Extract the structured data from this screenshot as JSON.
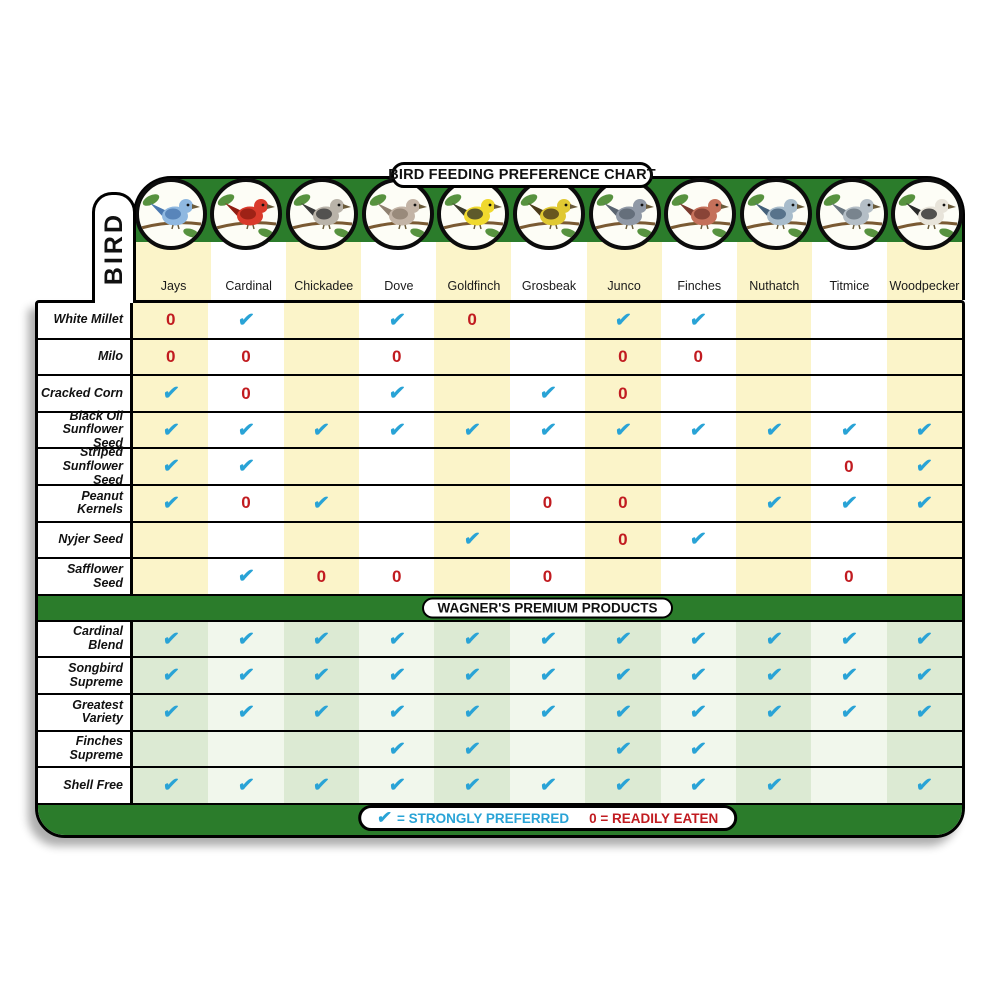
{
  "side_tab": "BIRD",
  "symbols": {
    "check": "✔",
    "zero": "0"
  },
  "legend": {
    "check_symbol": "✔",
    "check_text": "= STRONGLY PREFERRED",
    "zero_text": "0 = READILY EATEN"
  },
  "colors": {
    "green": "#2b7c2b",
    "yellow_stripe": "#fbf4c9",
    "premium_stripe": "#dcead3",
    "check": "#29a3d6",
    "zero": "#c11b20"
  },
  "birds": [
    {
      "name": "Jays",
      "color": "#8fb8e0",
      "accent": "#4a78b0"
    },
    {
      "name": "Cardinal",
      "color": "#d93a2b",
      "accent": "#8f1d12"
    },
    {
      "name": "Chickadee",
      "color": "#b9b3a9",
      "accent": "#3a3a3a"
    },
    {
      "name": "Dove",
      "color": "#c3b4a6",
      "accent": "#8f8070"
    },
    {
      "name": "Goldfinch",
      "color": "#f0d92e",
      "accent": "#3a3a2a"
    },
    {
      "name": "Grosbeak",
      "color": "#e0c832",
      "accent": "#4a3a1a"
    },
    {
      "name": "Junco",
      "color": "#9099a6",
      "accent": "#5a6470"
    },
    {
      "name": "Finches",
      "color": "#c4705a",
      "accent": "#7a3a2e"
    },
    {
      "name": "Nuthatch",
      "color": "#a8bccb",
      "accent": "#44607a"
    },
    {
      "name": "Titmice",
      "color": "#b4bec6",
      "accent": "#6a7680"
    },
    {
      "name": "Woodpecker",
      "color": "#e8e4da",
      "accent": "#2a2a2a"
    }
  ],
  "chart_data": {
    "type": "table",
    "title": "BIRD FEEDING PREFERENCE CHART",
    "columns": [
      "Jays",
      "Cardinal",
      "Chickadee",
      "Dove",
      "Goldfinch",
      "Grosbeak",
      "Junco",
      "Finches",
      "Nuthatch",
      "Titmice",
      "Woodpecker"
    ],
    "legend": {
      "check": "STRONGLY PREFERRED",
      "zero": "READILY EATEN"
    },
    "sections": [
      {
        "title": "",
        "rows": [
          {
            "label": "White Millet",
            "cells": [
              "zero",
              "check",
              "",
              "check",
              "zero",
              "",
              "check",
              "check",
              "",
              "",
              ""
            ]
          },
          {
            "label": "Milo",
            "cells": [
              "zero",
              "zero",
              "",
              "zero",
              "",
              "",
              "zero",
              "zero",
              "",
              "",
              ""
            ]
          },
          {
            "label": "Cracked Corn",
            "cells": [
              "check",
              "zero",
              "",
              "check",
              "",
              "check",
              "zero",
              "",
              "",
              "",
              ""
            ]
          },
          {
            "label": "Black Oil Sunflower Seed",
            "cells": [
              "check",
              "check",
              "check",
              "check",
              "check",
              "check",
              "check",
              "check",
              "check",
              "check",
              "check"
            ]
          },
          {
            "label": "Striped Sunflower Seed",
            "cells": [
              "check",
              "check",
              "",
              "",
              "",
              "",
              "",
              "",
              "",
              "zero",
              "check"
            ]
          },
          {
            "label": "Peanut Kernels",
            "cells": [
              "check",
              "zero",
              "check",
              "",
              "",
              "zero",
              "zero",
              "",
              "check",
              "check",
              "check"
            ]
          },
          {
            "label": "Nyjer Seed",
            "cells": [
              "",
              "",
              "",
              "",
              "check",
              "",
              "zero",
              "check",
              "",
              "",
              ""
            ]
          },
          {
            "label": "Safflower Seed",
            "cells": [
              "",
              "check",
              "zero",
              "zero",
              "",
              "zero",
              "",
              "",
              "",
              "zero",
              ""
            ]
          }
        ]
      },
      {
        "title": "WAGNER'S PREMIUM PRODUCTS",
        "rows": [
          {
            "label": "Cardinal Blend",
            "cells": [
              "check",
              "check",
              "check",
              "check",
              "check",
              "check",
              "check",
              "check",
              "check",
              "check",
              "check"
            ]
          },
          {
            "label": "Songbird Supreme",
            "cells": [
              "check",
              "check",
              "check",
              "check",
              "check",
              "check",
              "check",
              "check",
              "check",
              "check",
              "check"
            ]
          },
          {
            "label": "Greatest Variety",
            "cells": [
              "check",
              "check",
              "check",
              "check",
              "check",
              "check",
              "check",
              "check",
              "check",
              "check",
              "check"
            ]
          },
          {
            "label": "Finches Supreme",
            "cells": [
              "",
              "",
              "",
              "check",
              "check",
              "",
              "check",
              "check",
              "",
              "",
              ""
            ]
          },
          {
            "label": "Shell Free",
            "cells": [
              "check",
              "check",
              "check",
              "check",
              "check",
              "check",
              "check",
              "check",
              "check",
              "",
              "check"
            ]
          }
        ]
      }
    ]
  }
}
